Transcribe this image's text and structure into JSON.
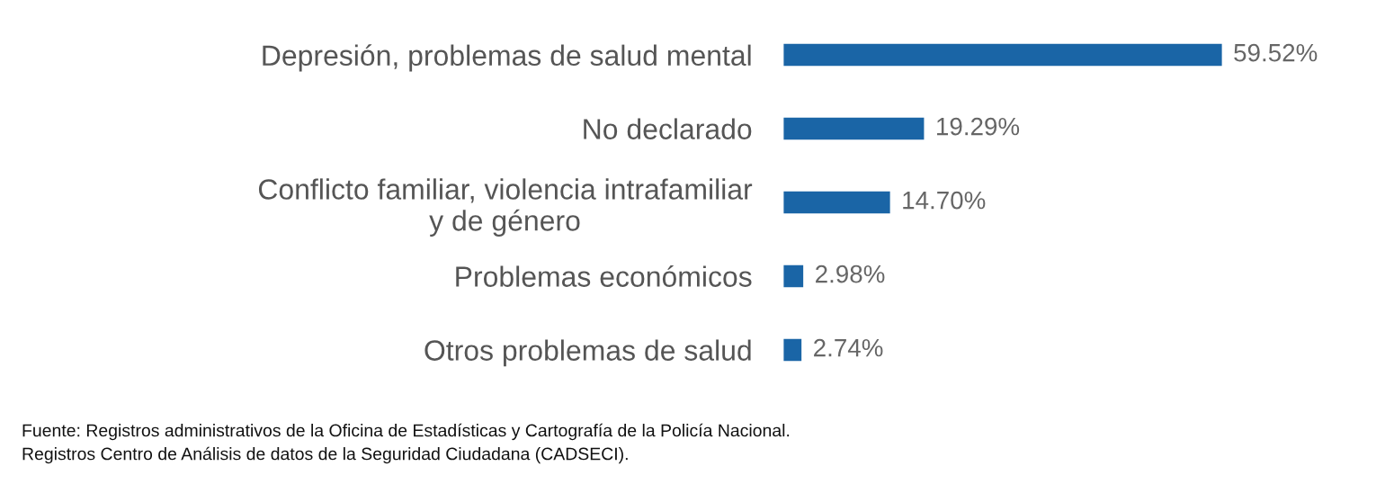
{
  "chart_data": {
    "type": "bar",
    "orientation": "horizontal",
    "categories": [
      "Depresión, problemas de salud mental",
      "No declarado",
      "Conflicto familiar, violencia intrafamiliar\ny de género",
      "Problemas económicos",
      "Otros problemas de salud"
    ],
    "values": [
      59.52,
      19.29,
      14.7,
      2.98,
      2.74
    ],
    "value_labels": [
      "59.52%",
      "19.29%",
      "14.70%",
      "2.98%",
      "2.74%"
    ],
    "color": "#1a65a6",
    "annotations": [
      "Fuente: Registros administrativos de la Oficina de Estadísticas y Cartografía de la Policía Nacional.",
      "Registros Centro de Análisis de datos de la Seguridad Ciudadana (CADSECI)."
    ]
  }
}
